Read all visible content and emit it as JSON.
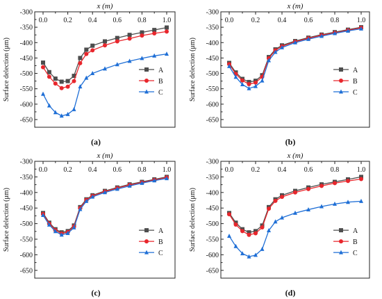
{
  "charts": {
    "panels": [
      {
        "caption": "(a)",
        "type": "line",
        "title": "",
        "xlabel": "x (m)",
        "ylabel": "Surface delection (μm)",
        "xlim": [
          0,
          1
        ],
        "ylim": [
          -675,
          -300
        ],
        "xticks": [
          "0.0",
          "0.2",
          "0.4",
          "0.6",
          "0.8",
          "1.0"
        ],
        "yticks": [
          "-300",
          "-350",
          "-400",
          "-450",
          "-500",
          "-550",
          "-600",
          "-650"
        ],
        "legend_position": "right-middle",
        "series": [
          {
            "name": "A",
            "color": "#4d4d4d",
            "marker": "square",
            "x": [
              0,
              0.05,
              0.1,
              0.15,
              0.2,
              0.25,
              0.3,
              0.35,
              0.4,
              0.5,
              0.6,
              0.7,
              0.8,
              0.9,
              1.0
            ],
            "y": [
              -465,
              -496,
              -517,
              -527,
              -525,
              -508,
              -450,
              -423,
              -410,
              -396,
              -385,
              -375,
              -367,
              -359,
              -351
            ]
          },
          {
            "name": "B",
            "color": "#e8262c",
            "marker": "circle",
            "x": [
              0,
              0.05,
              0.1,
              0.15,
              0.2,
              0.25,
              0.3,
              0.35,
              0.4,
              0.5,
              0.6,
              0.7,
              0.8,
              0.9,
              1.0
            ],
            "y": [
              -480,
              -511,
              -533,
              -548,
              -543,
              -525,
              -467,
              -437,
              -425,
              -409,
              -396,
              -387,
              -377,
              -370,
              -364
            ]
          },
          {
            "name": "C",
            "color": "#1f6fd6",
            "marker": "triangle",
            "x": [
              0,
              0.05,
              0.1,
              0.15,
              0.2,
              0.25,
              0.3,
              0.35,
              0.4,
              0.5,
              0.6,
              0.7,
              0.8,
              0.9,
              1.0
            ],
            "y": [
              -567,
              -605,
              -627,
              -638,
              -633,
              -617,
              -543,
              -515,
              -500,
              -485,
              -471,
              -460,
              -451,
              -443,
              -437
            ]
          }
        ]
      },
      {
        "caption": "(b)",
        "type": "line",
        "title": "",
        "xlabel": "x (m)",
        "ylabel": "Surface delection (μm)",
        "xlim": [
          0,
          1
        ],
        "ylim": [
          -675,
          -300
        ],
        "xticks": [
          "0.0",
          "0.2",
          "0.4",
          "0.6",
          "0.8",
          "1.0"
        ],
        "yticks": [
          "-300",
          "-350",
          "-400",
          "-450",
          "-500",
          "-550",
          "-600",
          "-650"
        ],
        "legend_position": "right-middle",
        "series": [
          {
            "name": "A",
            "color": "#4d4d4d",
            "marker": "square",
            "x": [
              0,
              0.05,
              0.1,
              0.15,
              0.2,
              0.25,
              0.3,
              0.35,
              0.4,
              0.5,
              0.6,
              0.7,
              0.8,
              0.9,
              1.0
            ],
            "y": [
              -466,
              -497,
              -518,
              -528,
              -524,
              -506,
              -447,
              -422,
              -409,
              -395,
              -384,
              -374,
              -366,
              -358,
              -350
            ]
          },
          {
            "name": "B",
            "color": "#e8262c",
            "marker": "circle",
            "x": [
              0,
              0.05,
              0.1,
              0.15,
              0.2,
              0.25,
              0.3,
              0.35,
              0.4,
              0.5,
              0.6,
              0.7,
              0.8,
              0.9,
              1.0
            ],
            "y": [
              -470,
              -502,
              -523,
              -535,
              -530,
              -511,
              -451,
              -425,
              -412,
              -397,
              -386,
              -376,
              -368,
              -360,
              -352
            ]
          },
          {
            "name": "C",
            "color": "#1f6fd6",
            "marker": "triangle",
            "x": [
              0,
              0.05,
              0.1,
              0.15,
              0.2,
              0.25,
              0.3,
              0.35,
              0.4,
              0.5,
              0.6,
              0.7,
              0.8,
              0.9,
              1.0
            ],
            "y": [
              -477,
              -512,
              -536,
              -549,
              -542,
              -524,
              -458,
              -431,
              -416,
              -400,
              -389,
              -379,
              -370,
              -362,
              -355
            ]
          }
        ]
      },
      {
        "caption": "(c)",
        "type": "line",
        "title": "",
        "xlabel": "x (m)",
        "ylabel": "Surface delection (μm)",
        "xlim": [
          0,
          1
        ],
        "ylim": [
          -675,
          -300
        ],
        "xticks": [
          "0.0",
          "0.2",
          "0.4",
          "0.6",
          "0.8",
          "1.0"
        ],
        "yticks": [
          "-300",
          "-350",
          "-400",
          "-450",
          "-500",
          "-550",
          "-600",
          "-650"
        ],
        "legend_position": "right-lower",
        "series": [
          {
            "name": "A",
            "color": "#4d4d4d",
            "marker": "square",
            "x": [
              0,
              0.05,
              0.1,
              0.15,
              0.2,
              0.25,
              0.3,
              0.35,
              0.4,
              0.5,
              0.6,
              0.7,
              0.8,
              0.9,
              1.0
            ],
            "y": [
              -466,
              -497,
              -518,
              -528,
              -524,
              -506,
              -447,
              -422,
              -409,
              -395,
              -384,
              -374,
              -366,
              -358,
              -350
            ]
          },
          {
            "name": "B",
            "color": "#e8262c",
            "marker": "circle",
            "x": [
              0,
              0.05,
              0.1,
              0.15,
              0.2,
              0.25,
              0.3,
              0.35,
              0.4,
              0.5,
              0.6,
              0.7,
              0.8,
              0.9,
              1.0
            ],
            "y": [
              -469,
              -500,
              -521,
              -532,
              -527,
              -509,
              -450,
              -424,
              -411,
              -397,
              -386,
              -376,
              -368,
              -360,
              -352
            ]
          },
          {
            "name": "C",
            "color": "#1f6fd6",
            "marker": "triangle",
            "x": [
              0,
              0.05,
              0.1,
              0.15,
              0.2,
              0.25,
              0.3,
              0.35,
              0.4,
              0.5,
              0.6,
              0.7,
              0.8,
              0.9,
              1.0
            ],
            "y": [
              -473,
              -504,
              -525,
              -536,
              -531,
              -513,
              -454,
              -428,
              -414,
              -400,
              -389,
              -379,
              -370,
              -362,
              -355
            ]
          }
        ]
      },
      {
        "caption": "(d)",
        "type": "line",
        "title": "",
        "xlabel": "x (m)",
        "ylabel": "Surface delection (μm)",
        "xlim": [
          0,
          1
        ],
        "ylim": [
          -675,
          -300
        ],
        "xticks": [
          "0.0",
          "0.2",
          "0.4",
          "0.6",
          "0.8",
          "1.0"
        ],
        "yticks": [
          "-300",
          "-350",
          "-400",
          "-450",
          "-500",
          "-550",
          "-600",
          "-650"
        ],
        "legend_position": "right-lower",
        "series": [
          {
            "name": "A",
            "color": "#4d4d4d",
            "marker": "square",
            "x": [
              0,
              0.05,
              0.1,
              0.15,
              0.2,
              0.25,
              0.3,
              0.35,
              0.4,
              0.5,
              0.6,
              0.7,
              0.8,
              0.9,
              1.0
            ],
            "y": [
              -466,
              -497,
              -518,
              -528,
              -524,
              -506,
              -447,
              -422,
              -409,
              -395,
              -384,
              -374,
              -366,
              -358,
              -350
            ]
          },
          {
            "name": "B",
            "color": "#e8262c",
            "marker": "circle",
            "x": [
              0,
              0.05,
              0.1,
              0.15,
              0.2,
              0.25,
              0.3,
              0.35,
              0.4,
              0.5,
              0.6,
              0.7,
              0.8,
              0.9,
              1.0
            ],
            "y": [
              -470,
              -503,
              -524,
              -536,
              -531,
              -512,
              -452,
              -427,
              -414,
              -400,
              -389,
              -379,
              -370,
              -363,
              -357
            ]
          },
          {
            "name": "C",
            "color": "#1f6fd6",
            "marker": "triangle",
            "x": [
              0,
              0.05,
              0.1,
              0.15,
              0.2,
              0.25,
              0.3,
              0.35,
              0.4,
              0.5,
              0.6,
              0.7,
              0.8,
              0.9,
              1.0
            ],
            "y": [
              -540,
              -573,
              -596,
              -606,
              -601,
              -582,
              -522,
              -494,
              -481,
              -466,
              -455,
              -445,
              -437,
              -431,
              -428
            ]
          }
        ]
      }
    ]
  }
}
